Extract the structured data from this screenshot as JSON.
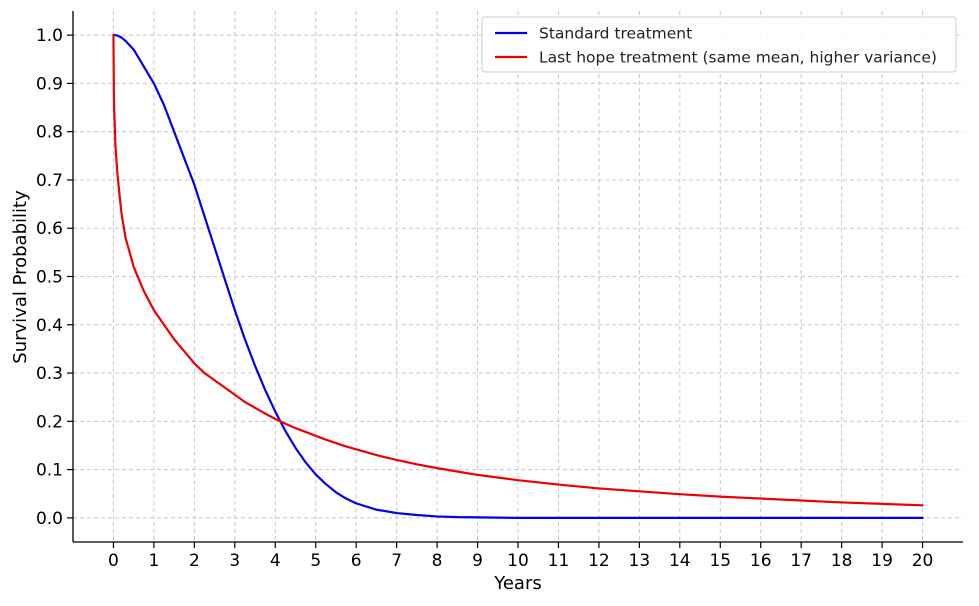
{
  "chart_data": {
    "type": "line",
    "title": "",
    "xlabel": "Years",
    "ylabel": "Survival Probability",
    "xlim": [
      -1,
      21
    ],
    "ylim": [
      -0.05,
      1.05
    ],
    "xticks": [
      "0",
      "1",
      "2",
      "3",
      "4",
      "5",
      "6",
      "7",
      "8",
      "9",
      "10",
      "11",
      "12",
      "13",
      "14",
      "15",
      "16",
      "17",
      "18",
      "19",
      "20"
    ],
    "yticks": [
      "0.0",
      "0.1",
      "0.2",
      "0.3",
      "0.4",
      "0.5",
      "0.6",
      "0.7",
      "0.8",
      "0.9",
      "1.0"
    ],
    "grid": true,
    "legend_position": "top-right",
    "x": [
      0,
      0.01,
      0.02,
      0.05,
      0.1,
      0.2,
      0.3,
      0.5,
      0.75,
      1,
      1.25,
      1.5,
      1.75,
      2,
      2.25,
      2.5,
      2.75,
      3,
      3.25,
      3.5,
      3.75,
      4,
      4.25,
      4.5,
      4.75,
      5,
      5.25,
      5.5,
      5.75,
      6,
      6.5,
      7,
      7.5,
      8,
      8.5,
      9,
      10,
      11,
      12,
      13,
      14,
      15,
      16,
      17,
      18,
      19,
      20
    ],
    "series": [
      {
        "name": "Standard treatment",
        "color": "#0000ee",
        "values": [
          1.0,
          1.0,
          1.0,
          1.0,
          0.999,
          0.995,
          0.988,
          0.97,
          0.935,
          0.9,
          0.855,
          0.8,
          0.745,
          0.69,
          0.625,
          0.56,
          0.495,
          0.43,
          0.37,
          0.315,
          0.265,
          0.22,
          0.18,
          0.145,
          0.115,
          0.09,
          0.07,
          0.053,
          0.04,
          0.03,
          0.017,
          0.01,
          0.006,
          0.003,
          0.0015,
          0.001,
          0.0,
          0.0,
          0.0,
          0.0,
          0.0,
          0.0,
          0.0,
          0.0,
          0.0,
          0.0,
          0.0
        ]
      },
      {
        "name": "Last hope treatment (same mean, higher variance)",
        "color": "#ee0000",
        "values": [
          1.0,
          0.88,
          0.84,
          0.77,
          0.71,
          0.63,
          0.58,
          0.52,
          0.47,
          0.43,
          0.4,
          0.37,
          0.345,
          0.32,
          0.3,
          0.285,
          0.27,
          0.255,
          0.24,
          0.228,
          0.216,
          0.205,
          0.195,
          0.186,
          0.178,
          0.17,
          0.162,
          0.155,
          0.148,
          0.142,
          0.13,
          0.12,
          0.111,
          0.103,
          0.096,
          0.089,
          0.078,
          0.069,
          0.061,
          0.055,
          0.049,
          0.044,
          0.04,
          0.036,
          0.032,
          0.029,
          0.026
        ]
      }
    ]
  }
}
